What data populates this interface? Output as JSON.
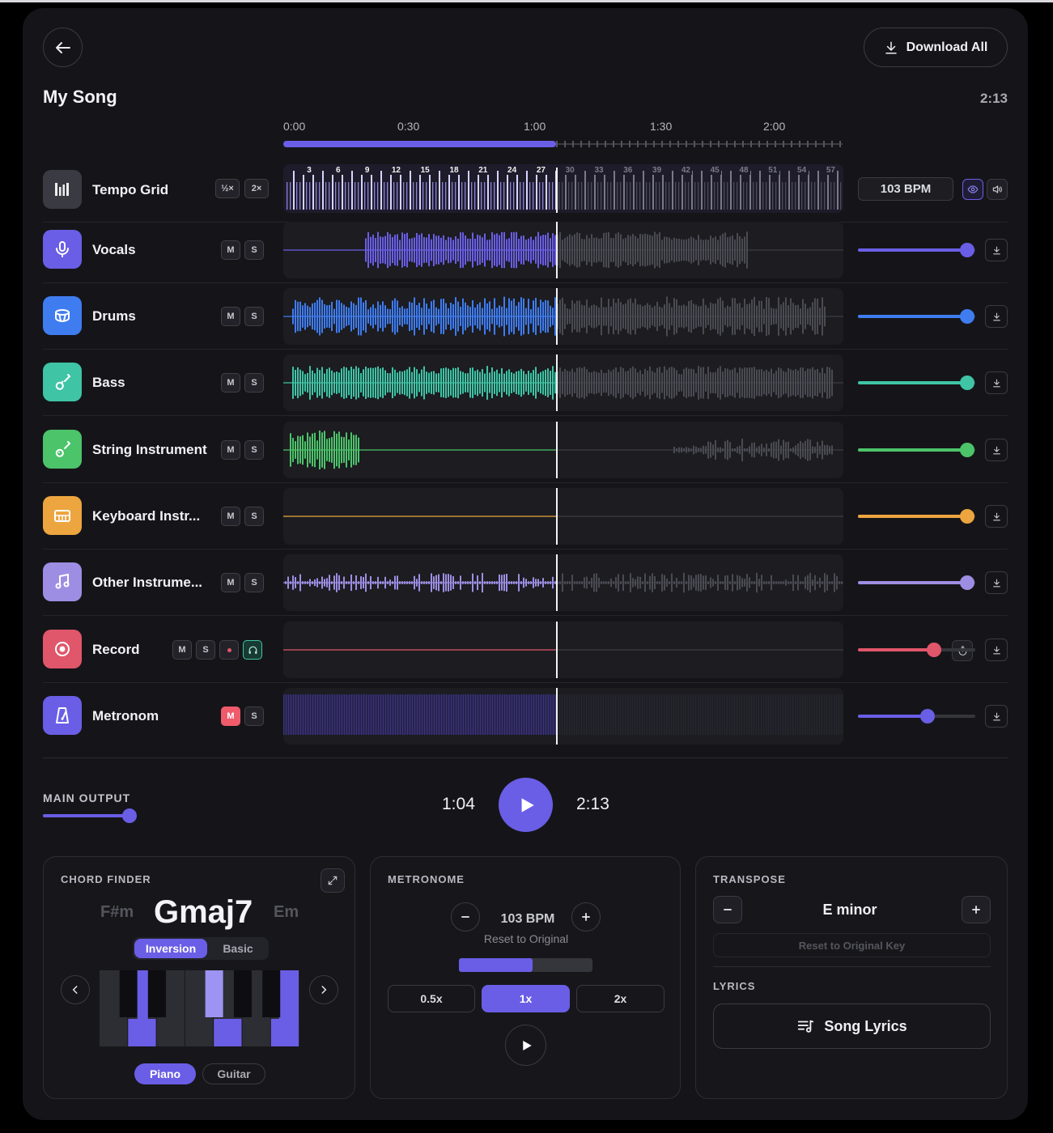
{
  "header": {
    "back_icon": "arrow-left-icon",
    "download_all_label": "Download All",
    "song_title": "My Song",
    "duration": "2:13"
  },
  "timeline": {
    "labels": [
      "0:00",
      "0:30",
      "1:00",
      "1:30",
      "2:00"
    ],
    "progress_fraction": 0.488
  },
  "tempo_grid": {
    "name": "Tempo Grid",
    "half_label": "½×",
    "double_label": "2×",
    "beat_numbers": [
      "3",
      "6",
      "9",
      "12",
      "15",
      "18",
      "21",
      "24",
      "27",
      "30",
      "33",
      "36",
      "39",
      "42",
      "45",
      "48",
      "51",
      "54",
      "57"
    ],
    "bpm_label": "103 BPM"
  },
  "tracks": [
    {
      "name": "Vocals",
      "icon": "microphone-icon",
      "color": "#6a5ee6",
      "m": "M",
      "s": "S",
      "volume": 0.93
    },
    {
      "name": "Drums",
      "icon": "drum-icon",
      "color": "#3f7cf0",
      "m": "M",
      "s": "S",
      "volume": 0.93
    },
    {
      "name": "Bass",
      "icon": "bass-guitar-icon",
      "color": "#3fc4a5",
      "m": "M",
      "s": "S",
      "volume": 0.93
    },
    {
      "name": "String Instrument",
      "icon": "guitar-icon",
      "color": "#4cc46a",
      "m": "M",
      "s": "S",
      "volume": 0.93
    },
    {
      "name": "Keyboard Instr...",
      "icon": "piano-icon",
      "color": "#eda53f",
      "m": "M",
      "s": "S",
      "volume": 0.93
    },
    {
      "name": "Other Instrume...",
      "icon": "music-note-icon",
      "color": "#9e8ee3",
      "m": "M",
      "s": "S",
      "volume": 0.93
    },
    {
      "name": "Record",
      "icon": "record-icon",
      "color": "#e0566a",
      "m": "M",
      "s": "S",
      "volume": 0.65
    },
    {
      "name": "Metronom",
      "icon": "metronome-icon",
      "color": "#6a5ee6",
      "m": "M",
      "s": "S",
      "volume": 0.59
    }
  ],
  "transport": {
    "main_output_label": "MAIN OUTPUT",
    "main_output_level": 0.99,
    "current_time": "1:04",
    "total_time": "2:13"
  },
  "chord_finder": {
    "title": "CHORD FINDER",
    "prev_chord": "F#m",
    "current_chord": "Gmaj7",
    "next_chord": "Em",
    "mode_inversion": "Inversion",
    "mode_basic": "Basic",
    "instrument_piano": "Piano",
    "instrument_guitar": "Guitar"
  },
  "metronome": {
    "title": "METRONOME",
    "bpm": "103 BPM",
    "reset_label": "Reset to Original",
    "volume": 0.55,
    "speeds": [
      "0.5x",
      "1x",
      "2x"
    ],
    "selected_speed": "1x"
  },
  "transpose": {
    "title": "TRANSPOSE",
    "key": "E minor",
    "reset_label": "Reset to Original Key"
  },
  "lyrics": {
    "title": "LYRICS",
    "button_label": "Song Lyrics"
  },
  "colors": {
    "accent": "#6a5ee6",
    "panel": "#151519",
    "muted_active": "#ef5b6b"
  }
}
